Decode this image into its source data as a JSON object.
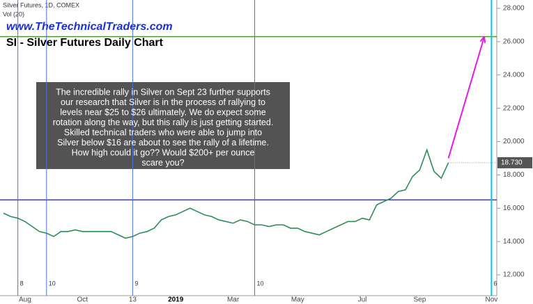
{
  "chart_data": {
    "type": "line",
    "title": "SI - Silver Futures Daily Chart",
    "watermark": "www.TheTechnicalTraders.com",
    "volume_label": "Vol (20)",
    "annotation": [
      "The incredible rally in Silver on Sept 23 further supports",
      "our research that Silver is in the process of rallying to",
      "levels near $25 to $26 ultimately.  We do expect some",
      "rotation along the way, but this rally is just getting started.",
      "Skilled technical traders who were able to jump into",
      "Silver below $16 are about to see the rally of a lifetime.",
      "How high could it go??  Would $200+ per ounce",
      "scare you?"
    ],
    "categories": [
      null,
      null,
      null,
      "Aug",
      null,
      null,
      null,
      null,
      null,
      null,
      null,
      "Oct",
      null,
      null,
      null,
      null,
      null,
      null,
      "13",
      null,
      null,
      null,
      null,
      null,
      "2019",
      null,
      null,
      null,
      null,
      null,
      null,
      null,
      "Mar",
      null,
      null,
      null,
      null,
      null,
      null,
      null,
      null,
      "May",
      null,
      null,
      null,
      null,
      null,
      null,
      null,
      null,
      "Jul",
      null,
      null,
      null,
      null,
      null,
      null,
      null,
      "Sep",
      null,
      null,
      null,
      null,
      null,
      null,
      null,
      null,
      null,
      "Nov"
    ],
    "series": [
      {
        "name": "Silver Futures, 1D, COMEX",
        "color": "#2e8b57",
        "values": [
          15.7,
          15.5,
          15.4,
          15.2,
          14.9,
          14.6,
          14.5,
          14.3,
          14.6,
          14.6,
          14.7,
          14.6,
          14.6,
          14.6,
          14.6,
          14.6,
          14.4,
          14.2,
          14.3,
          14.5,
          14.6,
          14.8,
          15.3,
          15.5,
          15.6,
          15.8,
          16.0,
          15.8,
          15.6,
          15.5,
          15.3,
          15.2,
          15.1,
          15.3,
          15.2,
          15.0,
          15.0,
          14.9,
          15.0,
          15.0,
          14.8,
          14.8,
          14.6,
          14.5,
          14.4,
          14.6,
          14.8,
          15.0,
          15.2,
          15.2,
          15.4,
          15.3,
          16.2,
          16.4,
          16.6,
          17.0,
          17.1,
          17.9,
          18.3,
          19.5,
          18.2,
          17.8,
          18.73,
          null,
          null,
          null,
          null,
          null,
          null
        ],
        "last_value_label": {
          "value": 18.73,
          "label": "18.730"
        }
      }
    ],
    "ylim": [
      10.75,
      28.5
    ],
    "yticks": [
      {
        "value": 12,
        "label": "12.000"
      },
      {
        "value": 14,
        "label": "14.000"
      },
      {
        "value": 16,
        "label": "16.000"
      },
      {
        "value": 18,
        "label": "18.000"
      },
      {
        "value": 20,
        "label": "20.000"
      },
      {
        "value": 22,
        "label": "22.000"
      },
      {
        "value": 24,
        "label": "24.000"
      },
      {
        "value": 26,
        "label": "26.000"
      },
      {
        "value": 28,
        "label": "28.000"
      }
    ],
    "hlines": [
      {
        "value": 26.3,
        "color": "#4c9a2a"
      },
      {
        "value": 16.5,
        "color": "#3030e0"
      }
    ],
    "vlines": [
      {
        "at": 2,
        "label": "8",
        "color": "#4a6fe3"
      },
      {
        "at": 6,
        "label": "10",
        "color": "#4a6fe3"
      },
      {
        "at": 18,
        "label": "9",
        "color": "#4a6fe3"
      },
      {
        "at": 35,
        "label": "10",
        "color": "#4a6fe3"
      },
      {
        "at": 68,
        "label": "6",
        "color": "#00c8e0"
      }
    ],
    "arrow": {
      "color": "#e619e6",
      "x0": 62,
      "y0": 19.0,
      "x1": 67,
      "y1": 26.3
    }
  }
}
